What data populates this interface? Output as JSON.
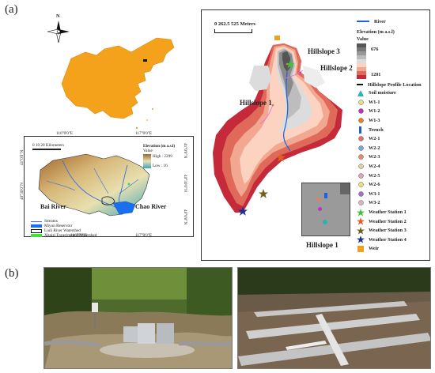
{
  "panel_labels": {
    "a": "(a)",
    "b": "(b)"
  },
  "north": {
    "letter": "N"
  },
  "watershed_map": {
    "scale_text": "0  10  20 Kilometers",
    "longitudes": [
      "116°0'0\"E",
      "117°0'0\"E"
    ],
    "latitudes": [
      "41°0'0\"N",
      "40°30'0\"N",
      "40°0'0\"N"
    ],
    "legend_title": "Elevation (m a.s.l)",
    "legend_value": "Value",
    "legend_high": "High : 2299",
    "legend_low": "Low : 16",
    "river_labels": [
      "Bai River",
      "Chao River"
    ],
    "legend_items": [
      "Streams",
      "Miyun Reservoir",
      "Liuli River Watershed",
      "Xitaizi Experimental Watershed"
    ]
  },
  "detail_map": {
    "scale_text": "0    262.5 525 Meters",
    "hillslope_labels": [
      "Hillslope 3",
      "Hillslope 2",
      "Hillslope 1"
    ],
    "inset_label": "Hillslope 1",
    "legend": {
      "river": "River",
      "elevation_title": "Elevation (m a.s.l)",
      "value": "Value",
      "high": "676",
      "low": "1201",
      "profile_title": "Hillslope Profile Location",
      "items": [
        {
          "label": "Soil moisture",
          "icon": "triangle-icon",
          "color": "#2bb3b3"
        },
        {
          "label": "W1-1",
          "icon": "circle-icon",
          "color": "#e8e080"
        },
        {
          "label": "W1-2",
          "icon": "circle-icon",
          "color": "#c030c0"
        },
        {
          "label": "W1-3",
          "icon": "circle-icon",
          "color": "#e08020"
        },
        {
          "label": "Trench",
          "icon": "bar-icon",
          "color": "#2060c0"
        },
        {
          "label": "W2-1",
          "icon": "circle-icon",
          "color": "#e07070"
        },
        {
          "label": "W2-2",
          "icon": "circle-icon",
          "color": "#80a0e0"
        },
        {
          "label": "W2-3",
          "icon": "circle-icon",
          "color": "#e09060"
        },
        {
          "label": "W2-4",
          "icon": "circle-icon",
          "color": "#e0d0a0"
        },
        {
          "label": "W2-5",
          "icon": "circle-icon",
          "color": "#e0a0c0"
        },
        {
          "label": "W2-6",
          "icon": "circle-icon",
          "color": "#f0e070"
        },
        {
          "label": "W3-1",
          "icon": "circle-icon",
          "color": "#a070d0"
        },
        {
          "label": "W3-2",
          "icon": "circle-icon",
          "color": "#e0b0c0"
        },
        {
          "label": "Weather Station 1",
          "icon": "star-icon",
          "color": "#40c040"
        },
        {
          "label": "Weather Station 2",
          "icon": "star-icon",
          "color": "#e06020"
        },
        {
          "label": "Weather Station 3",
          "icon": "star-icon",
          "color": "#706020"
        },
        {
          "label": "Weather Station 4",
          "icon": "star-icon",
          "color": "#203090"
        },
        {
          "label": "Weir",
          "icon": "square-icon",
          "color": "#f0a020"
        }
      ]
    }
  }
}
